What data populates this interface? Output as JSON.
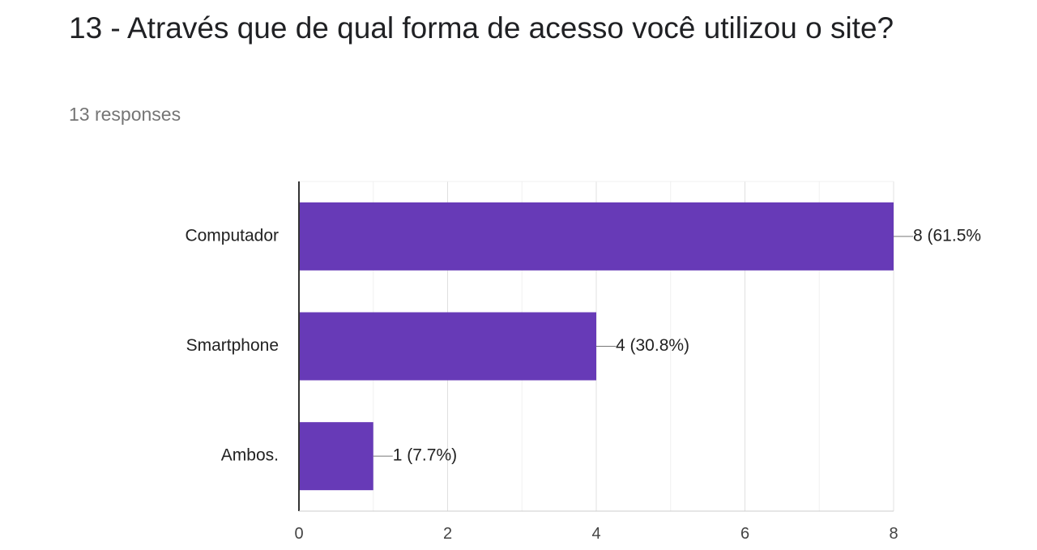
{
  "question": {
    "title": "13 - Através que de qual forma de acesso você utilizou o site?"
  },
  "summary": {
    "responses": "13 responses"
  },
  "chart_data": {
    "type": "bar",
    "orientation": "horizontal",
    "categories": [
      "Computador",
      "Smartphone",
      "Ambos."
    ],
    "values": [
      8,
      4,
      1
    ],
    "data_labels": [
      "8 (61.5%",
      "4 (30.8%)",
      "1 (7.7%)"
    ],
    "xlim": [
      0,
      8
    ],
    "x_ticks": [
      "0",
      "2",
      "4",
      "6",
      "8"
    ],
    "grid": true,
    "bar_color": "#673ab7"
  }
}
